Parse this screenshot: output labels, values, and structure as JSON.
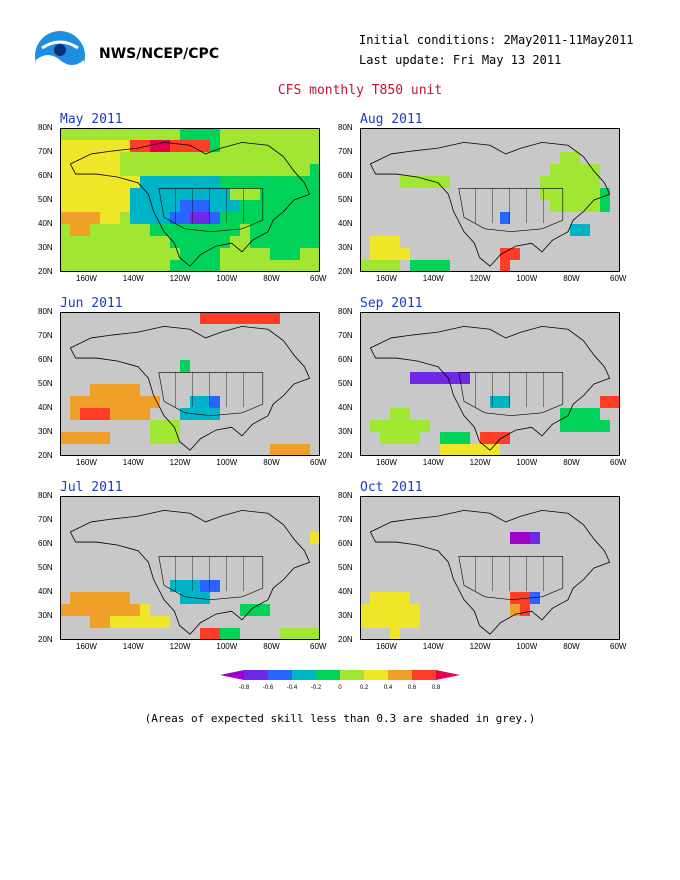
{
  "header": {
    "org": "NWS/NCEP/CPC",
    "initial_conditions": "Initial conditions: 2May2011-11May2011",
    "last_update": "Last update: Fri May 13 2011",
    "title": "CFS monthly T850 unit"
  },
  "axes": {
    "lat_labels": [
      "80N",
      "70N",
      "60N",
      "50N",
      "40N",
      "30N",
      "20N"
    ],
    "lon_labels": [
      "160W",
      "140W",
      "120W",
      "100W",
      "80W",
      "60W"
    ]
  },
  "panels": [
    {
      "id": "may",
      "title": "May 2011"
    },
    {
      "id": "aug",
      "title": "Aug 2011"
    },
    {
      "id": "jun",
      "title": "Jun 2011"
    },
    {
      "id": "sep",
      "title": "Sep 2011"
    },
    {
      "id": "jul",
      "title": "Jul 2011"
    },
    {
      "id": "oct",
      "title": "Oct 2011"
    }
  ],
  "colorbar": {
    "labels": [
      "-0.8",
      "-0.6",
      "-0.4",
      "-0.2",
      "0",
      "0.2",
      "0.4",
      "0.6",
      "0.8"
    ],
    "colors": [
      "#a000c8",
      "#6e28e6",
      "#2864ff",
      "#00b4c8",
      "#00d25a",
      "#a0e632",
      "#f0e628",
      "#f0a028",
      "#ff3c28",
      "#e6004b"
    ]
  },
  "note": "(Areas of expected skill less than 0.3 are shaded in grey.)",
  "colors": {
    "grey": "#c8c8c8",
    "title_red": "#c8102e",
    "panel_blue": "#1a3ccc"
  }
}
